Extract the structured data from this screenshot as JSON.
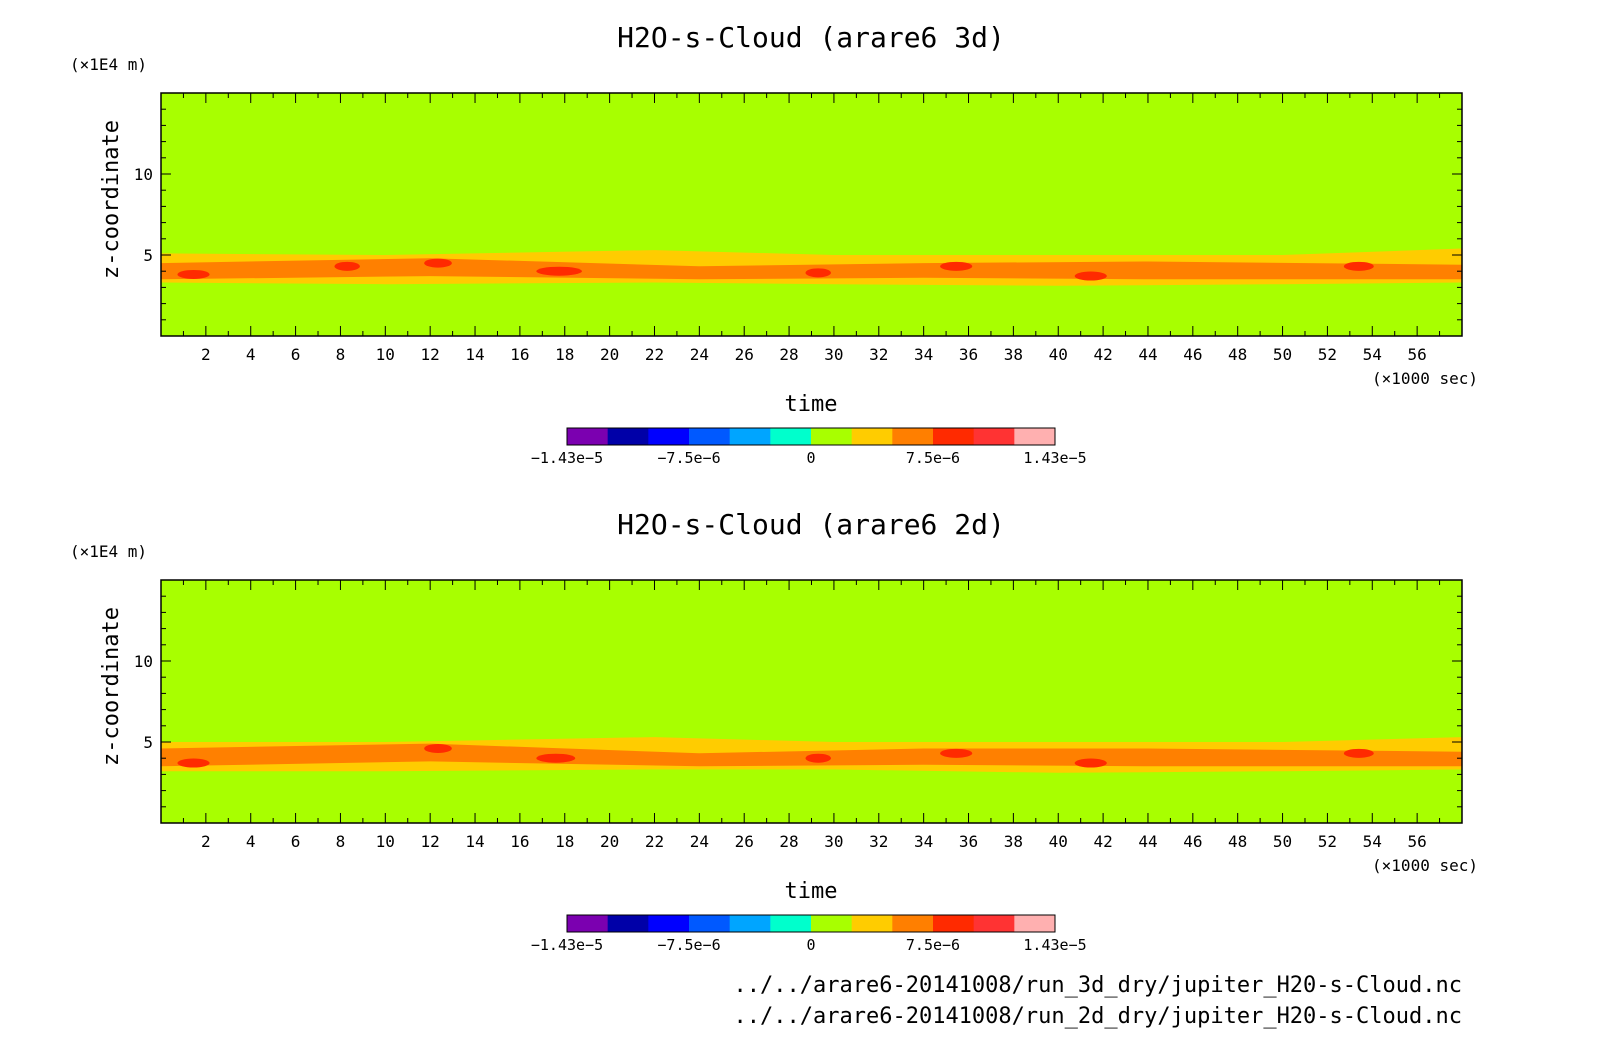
{
  "chart_data": [
    {
      "type": "heatmap",
      "title": "H2O-s-Cloud (arare6 3d)",
      "xlabel": "time",
      "ylabel": "z-coordinate",
      "x_unit": "(×1000 sec)",
      "y_unit": "(×1E4 m)",
      "xlim": [
        0,
        58
      ],
      "ylim": [
        0,
        15
      ],
      "x_ticks": [
        "2",
        "4",
        "6",
        "8",
        "10",
        "12",
        "14",
        "16",
        "18",
        "20",
        "22",
        "24",
        "26",
        "28",
        "30",
        "32",
        "34",
        "36",
        "38",
        "40",
        "42",
        "44",
        "46",
        "48",
        "50",
        "52",
        "54",
        "56"
      ],
      "y_ticks": [
        "5",
        "10"
      ],
      "background_level": "0",
      "band": {
        "description_levels": "positive anomaly band near z ≈ 3–5 (×1E4 m) across all times",
        "outer_yellow": [
          [
            0,
            3.3,
            5.1
          ],
          [
            10,
            3.2,
            5.0
          ],
          [
            22,
            3.3,
            5.3
          ],
          [
            30,
            3.2,
            5.0
          ],
          [
            40,
            3.1,
            5.0
          ],
          [
            50,
            3.2,
            5.0
          ],
          [
            58,
            3.3,
            5.4
          ]
        ],
        "orange_core": [
          [
            0,
            3.5,
            4.5
          ],
          [
            12,
            3.7,
            4.8
          ],
          [
            24,
            3.5,
            4.3
          ],
          [
            34,
            3.6,
            4.5
          ],
          [
            44,
            3.5,
            4.6
          ],
          [
            58,
            3.5,
            4.4
          ]
        ],
        "red_spots": [
          [
            1,
            3.8,
            0.9
          ],
          [
            8,
            4.3,
            0.6
          ],
          [
            12,
            4.5,
            0.7
          ],
          [
            17,
            4.0,
            1.5
          ],
          [
            29,
            3.9,
            0.6
          ],
          [
            35,
            4.3,
            0.9
          ],
          [
            41,
            3.7,
            0.9
          ],
          [
            53,
            4.3,
            0.8
          ]
        ]
      },
      "colorbar": {
        "colors": [
          "#7b00b0",
          "#0000a8",
          "#0000ff",
          "#0059ff",
          "#00a5ff",
          "#00ffcc",
          "#a8ff00",
          "#ffcc00",
          "#ff7f00",
          "#ff2a00",
          "#ff3333",
          "#ffb0b0"
        ],
        "tick_labels": [
          "−1.43e−5",
          "−7.5e−6",
          "0",
          "7.5e−6",
          "1.43e−5"
        ]
      }
    },
    {
      "type": "heatmap",
      "title": "H2O-s-Cloud (arare6 2d)",
      "xlabel": "time",
      "ylabel": "z-coordinate",
      "x_unit": "(×1000 sec)",
      "y_unit": "(×1E4 m)",
      "xlim": [
        0,
        58
      ],
      "ylim": [
        0,
        15
      ],
      "x_ticks": [
        "2",
        "4",
        "6",
        "8",
        "10",
        "12",
        "14",
        "16",
        "18",
        "20",
        "22",
        "24",
        "26",
        "28",
        "30",
        "32",
        "34",
        "36",
        "38",
        "40",
        "42",
        "44",
        "46",
        "48",
        "50",
        "52",
        "54",
        "56"
      ],
      "y_ticks": [
        "5",
        "10"
      ],
      "background_level": "0",
      "band": {
        "description_levels": "positive anomaly band near z ≈ 3–5 (×1E4 m) across all times",
        "outer_yellow": [
          [
            0,
            3.2,
            5.0
          ],
          [
            10,
            3.2,
            5.0
          ],
          [
            22,
            3.3,
            5.3
          ],
          [
            30,
            3.3,
            5.0
          ],
          [
            40,
            3.1,
            5.0
          ],
          [
            50,
            3.2,
            5.0
          ],
          [
            58,
            3.3,
            5.3
          ]
        ],
        "orange_core": [
          [
            0,
            3.5,
            4.6
          ],
          [
            12,
            3.8,
            4.9
          ],
          [
            24,
            3.5,
            4.3
          ],
          [
            34,
            3.6,
            4.6
          ],
          [
            44,
            3.5,
            4.6
          ],
          [
            58,
            3.5,
            4.4
          ]
        ],
        "red_spots": [
          [
            1,
            3.7,
            0.9
          ],
          [
            12,
            4.6,
            0.7
          ],
          [
            17,
            4.0,
            1.2
          ],
          [
            29,
            4.0,
            0.6
          ],
          [
            35,
            4.3,
            0.9
          ],
          [
            41,
            3.7,
            0.9
          ],
          [
            53,
            4.3,
            0.8
          ]
        ]
      },
      "colorbar": {
        "colors": [
          "#7b00b0",
          "#0000a8",
          "#0000ff",
          "#0059ff",
          "#00a5ff",
          "#00ffcc",
          "#a8ff00",
          "#ffcc00",
          "#ff7f00",
          "#ff2a00",
          "#ff3333",
          "#ffb0b0"
        ],
        "tick_labels": [
          "−1.43e−5",
          "−7.5e−6",
          "0",
          "7.5e−6",
          "1.43e−5"
        ]
      }
    }
  ],
  "files": [
    "../../arare6-20141008/run_3d_dry/jupiter_H20-s-Cloud.nc",
    "../../arare6-20141008/run_2d_dry/jupiter_H20-s-Cloud.nc"
  ],
  "colors": {
    "green": "#a8ff00",
    "yellow": "#ffcc00",
    "orange": "#ff8000",
    "red": "#ff2a00"
  }
}
